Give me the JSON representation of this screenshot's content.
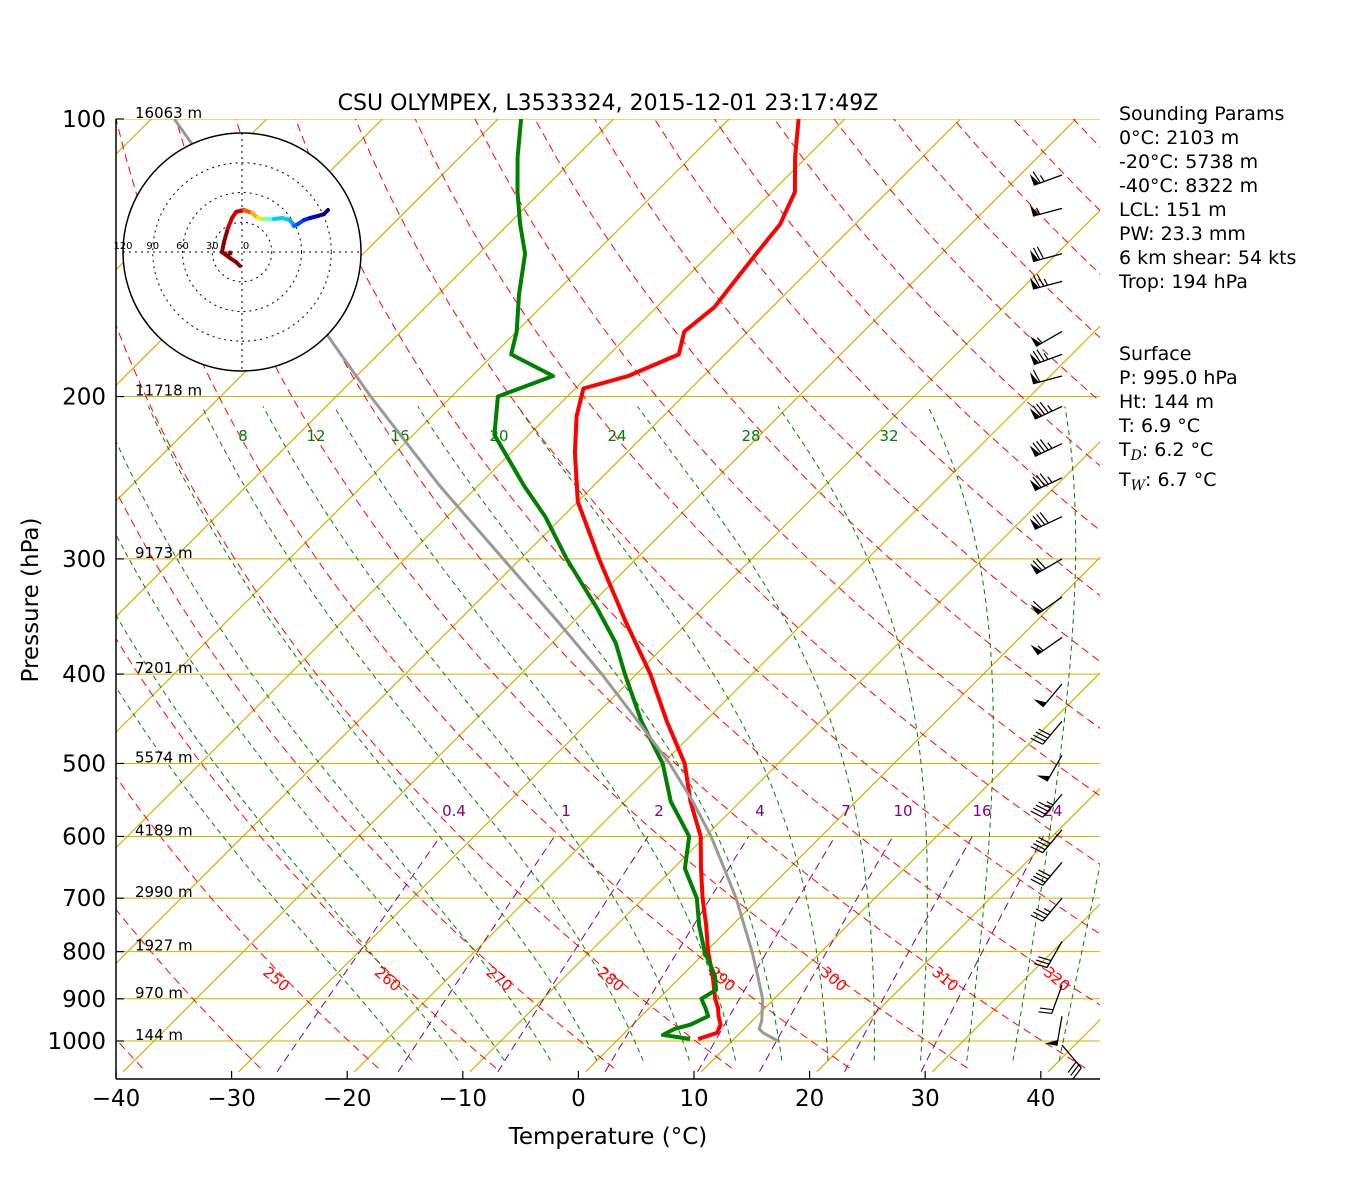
{
  "chart_data": {
    "type": "line",
    "title": "CSU OLYMPEX, L3533324, 2015-12-01 23:17:49Z",
    "xlabel": "Temperature (°C)",
    "ylabel": "Pressure (hPa)",
    "xlim": [
      -40,
      45
    ],
    "ylim": [
      1050,
      100
    ],
    "y_scale": "log",
    "skew": "skew-T",
    "x_ticks": [
      "−40",
      "−30",
      "−20",
      "−10",
      "0",
      "10",
      "20",
      "30",
      "40"
    ],
    "x_tick_values": [
      -40,
      -30,
      -20,
      -10,
      0,
      10,
      20,
      30,
      40
    ],
    "y_ticks": [
      100,
      200,
      300,
      400,
      500,
      600,
      700,
      800,
      900,
      1000
    ],
    "height_labels": [
      {
        "p": 100,
        "label": "16063 m"
      },
      {
        "p": 200,
        "label": "11718 m"
      },
      {
        "p": 300,
        "label": "9173 m"
      },
      {
        "p": 400,
        "label": "7201 m"
      },
      {
        "p": 500,
        "label": "5574 m"
      },
      {
        "p": 600,
        "label": "4189 m"
      },
      {
        "p": 700,
        "label": "2990 m"
      },
      {
        "p": 800,
        "label": "1927 m"
      },
      {
        "p": 900,
        "label": "970 m"
      },
      {
        "p": 1000,
        "label": "144 m"
      }
    ],
    "dry_adiabat_labels": [
      "250",
      "260",
      "270",
      "280",
      "290",
      "300",
      "310",
      "320"
    ],
    "moist_adiabat_labels": [
      "8",
      "12",
      "16",
      "20",
      "24",
      "28",
      "32"
    ],
    "mixing_ratio_labels": [
      "0.4",
      "1",
      "2",
      "4",
      "7",
      "10",
      "16",
      "24"
    ],
    "series": [
      {
        "name": "T",
        "color": "#ff0000",
        "points": [
          [
            995,
            6.9
          ],
          [
            980,
            8.0
          ],
          [
            960,
            7.6
          ],
          [
            940,
            6.7
          ],
          [
            920,
            5.9
          ],
          [
            900,
            4.9
          ],
          [
            850,
            2.7
          ],
          [
            800,
            0.2
          ],
          [
            750,
            -2.2
          ],
          [
            700,
            -4.9
          ],
          [
            650,
            -7.6
          ],
          [
            600,
            -10.4
          ],
          [
            550,
            -14.3
          ],
          [
            500,
            -18.1
          ],
          [
            450,
            -23.3
          ],
          [
            400,
            -28.8
          ],
          [
            350,
            -35.6
          ],
          [
            300,
            -43.2
          ],
          [
            260,
            -50.0
          ],
          [
            230,
            -54.5
          ],
          [
            210,
            -57.5
          ],
          [
            196,
            -59.3
          ],
          [
            190,
            -56.5
          ],
          [
            180,
            -54.0
          ],
          [
            170,
            -55.5
          ],
          [
            160,
            -55.0
          ],
          [
            150,
            -55.5
          ],
          [
            140,
            -56.0
          ],
          [
            130,
            -56.5
          ],
          [
            120,
            -58.0
          ],
          [
            110,
            -61.0
          ],
          [
            100,
            -64.0
          ]
        ]
      },
      {
        "name": "Td",
        "color": "#008000",
        "points": [
          [
            995,
            6.2
          ],
          [
            985,
            3.5
          ],
          [
            970,
            4.0
          ],
          [
            960,
            5.0
          ],
          [
            940,
            5.8
          ],
          [
            920,
            4.8
          ],
          [
            900,
            3.7
          ],
          [
            880,
            4.2
          ],
          [
            850,
            2.9
          ],
          [
            800,
            -0.1
          ],
          [
            750,
            -2.8
          ],
          [
            700,
            -5.4
          ],
          [
            650,
            -9.0
          ],
          [
            600,
            -11.4
          ],
          [
            550,
            -16.0
          ],
          [
            500,
            -20.0
          ],
          [
            450,
            -25.5
          ],
          [
            400,
            -31.0
          ],
          [
            370,
            -34.5
          ],
          [
            340,
            -39.0
          ],
          [
            300,
            -46.0
          ],
          [
            270,
            -51.5
          ],
          [
            250,
            -56.0
          ],
          [
            220,
            -63.0
          ],
          [
            200,
            -66.0
          ],
          [
            190,
            -63.0
          ],
          [
            180,
            -68.5
          ],
          [
            170,
            -70.0
          ],
          [
            155,
            -73.0
          ],
          [
            140,
            -76.0
          ],
          [
            130,
            -79.0
          ],
          [
            120,
            -82.0
          ],
          [
            110,
            -85.0
          ],
          [
            100,
            -88.0
          ]
        ]
      },
      {
        "name": "parcel",
        "color": "#999999",
        "points": [
          [
            1000,
            14.0
          ],
          [
            990,
            13.0
          ],
          [
            980,
            12.0
          ],
          [
            970,
            11.3
          ],
          [
            950,
            10.8
          ],
          [
            900,
            9.0
          ],
          [
            850,
            6.6
          ],
          [
            800,
            4.0
          ],
          [
            750,
            1.1
          ],
          [
            700,
            -2.0
          ],
          [
            650,
            -5.6
          ],
          [
            600,
            -9.5
          ],
          [
            550,
            -14.1
          ],
          [
            500,
            -19.4
          ],
          [
            450,
            -25.8
          ],
          [
            400,
            -33.0
          ],
          [
            350,
            -41.5
          ],
          [
            300,
            -51.5
          ],
          [
            250,
            -63.3
          ],
          [
            200,
            -77.0
          ],
          [
            150,
            -94.0
          ],
          [
            100,
            -118.0
          ]
        ]
      }
    ],
    "hodograph": {
      "ring_labels": [
        "120",
        "90",
        "60",
        "30",
        "0"
      ],
      "trace": [
        [
          -2,
          -14,
          "#8b0000"
        ],
        [
          -6,
          -10,
          "#8b0000"
        ],
        [
          -12,
          -6,
          "#8b0000"
        ],
        [
          -20,
          0,
          "#8b0000"
        ],
        [
          -18,
          10,
          "#8b0000"
        ],
        [
          -14,
          24,
          "#8b0000"
        ],
        [
          -10,
          34,
          "#cc0000"
        ],
        [
          -6,
          40,
          "#cc0000"
        ],
        [
          2,
          42,
          "#cc0000"
        ],
        [
          10,
          39,
          "#ff5500"
        ],
        [
          16,
          34,
          "#ffaa00"
        ],
        [
          20,
          33,
          "#ffee00"
        ],
        [
          26,
          33,
          "#aaff55"
        ],
        [
          32,
          33,
          "#55ffff"
        ],
        [
          40,
          34,
          "#00ccff"
        ],
        [
          48,
          32,
          "#00ccff"
        ],
        [
          52,
          26,
          "#00aaff"
        ],
        [
          56,
          28,
          "#0066ff"
        ],
        [
          62,
          32,
          "#0044ff"
        ],
        [
          68,
          34,
          "#0022ee"
        ],
        [
          76,
          36,
          "#0000cc"
        ],
        [
          82,
          38,
          "#000099"
        ],
        [
          86,
          42,
          "#000088"
        ]
      ]
    },
    "wind_barbs": [
      {
        "p": 115,
        "spd": 65,
        "dir": 250
      },
      {
        "p": 125,
        "spd": 55,
        "dir": 255
      },
      {
        "p": 140,
        "spd": 70,
        "dir": 255
      },
      {
        "p": 150,
        "spd": 75,
        "dir": 255
      },
      {
        "p": 170,
        "spd": 55,
        "dir": 240
      },
      {
        "p": 180,
        "spd": 75,
        "dir": 250
      },
      {
        "p": 190,
        "spd": 60,
        "dir": 255
      },
      {
        "p": 205,
        "spd": 85,
        "dir": 245
      },
      {
        "p": 225,
        "spd": 85,
        "dir": 245
      },
      {
        "p": 245,
        "spd": 85,
        "dir": 245
      },
      {
        "p": 270,
        "spd": 80,
        "dir": 245
      },
      {
        "p": 300,
        "spd": 70,
        "dir": 240
      },
      {
        "p": 330,
        "spd": 60,
        "dir": 235
      },
      {
        "p": 365,
        "spd": 55,
        "dir": 235
      },
      {
        "p": 410,
        "spd": 50,
        "dir": 220
      },
      {
        "p": 450,
        "spd": 40,
        "dir": 220
      },
      {
        "p": 490,
        "spd": 50,
        "dir": 210
      },
      {
        "p": 540,
        "spd": 45,
        "dir": 220
      },
      {
        "p": 590,
        "spd": 40,
        "dir": 220
      },
      {
        "p": 640,
        "spd": 40,
        "dir": 220
      },
      {
        "p": 700,
        "spd": 35,
        "dir": 220
      },
      {
        "p": 780,
        "spd": 30,
        "dir": 210
      },
      {
        "p": 870,
        "spd": 20,
        "dir": 200
      },
      {
        "p": 940,
        "spd": 50,
        "dir": 190
      },
      {
        "p": 1010,
        "spd": 30,
        "dir": 140
      }
    ]
  },
  "params": {
    "title": "Sounding Params",
    "l1": "0°C: 2103 m",
    "l2": "-20°C: 5738 m",
    "l3": "-40°C: 8322 m",
    "l4": "LCL: 151 m",
    "l5": "PW: 23.3 mm",
    "l6": "6 km shear: 54 kts",
    "l7": "Trop: 194 hPa"
  },
  "surface": {
    "title": "Surface",
    "p": "P: 995.0 hPa",
    "ht": "Ht: 144 m",
    "t": "T: 6.9 °C",
    "td_prefix": "T",
    "td_sub": "D",
    "td_value": ": 6.2 °C",
    "tw_prefix": "T",
    "tw_sub": "W",
    "tw_value": ": 6.7 °C"
  }
}
